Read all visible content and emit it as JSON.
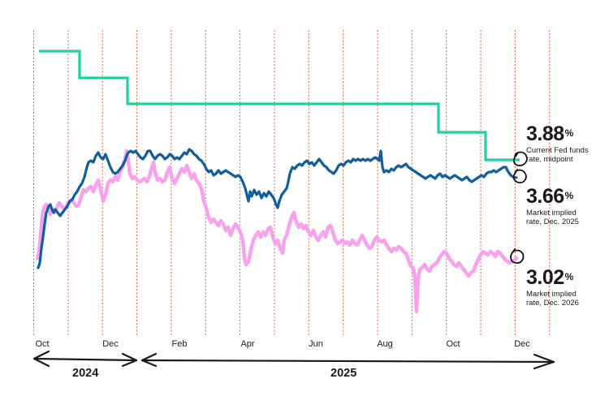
{
  "chart_data": {
    "type": "line",
    "title": "",
    "xlabel": "",
    "ylabel": "",
    "grid": "vertical dotted red lines, semi-monthly",
    "x_ticks": [
      "Oct",
      "Dec",
      "Feb",
      "Apr",
      "Jun",
      "Aug",
      "Oct",
      "Dec"
    ],
    "year_spans": [
      {
        "label": "2024",
        "from": "Oct",
        "to": "Dec"
      },
      {
        "label": "2025",
        "from": "Jan",
        "to": "Dec"
      }
    ],
    "x_range": [
      "2024-10",
      "2025-12"
    ],
    "series": [
      {
        "name": "Current Fed funds rate, midpoint",
        "color": "#1ed3a0",
        "kind": "step",
        "points": [
          {
            "x": "2024-10-01",
            "y": 4.83
          },
          {
            "x": "2024-11-07",
            "y": 4.58
          },
          {
            "x": "2024-12-18",
            "y": 4.33
          },
          {
            "x": "2025-09-17",
            "y": 4.08
          },
          {
            "x": "2025-10-29",
            "y": 3.88
          },
          {
            "x": "2025-11-30",
            "y": 3.88
          }
        ],
        "end_value": 3.88
      },
      {
        "name": "Market implied rate, Dec. 2025",
        "color": "#0f5f9c",
        "kind": "line",
        "monthly_approx": [
          3.0,
          3.45,
          3.75,
          3.9,
          3.88,
          3.72,
          3.55,
          3.85,
          3.88,
          3.78,
          3.72,
          3.72,
          3.66
        ],
        "end_value": 3.66
      },
      {
        "name": "Market implied rate, Dec. 2026",
        "color": "#f7a2ea",
        "kind": "line",
        "monthly_approx": [
          3.05,
          3.45,
          3.6,
          3.78,
          3.72,
          3.35,
          3.15,
          3.3,
          3.2,
          3.05,
          3.05,
          3.1,
          3.02
        ],
        "end_value": 3.02
      }
    ],
    "annotations": [
      {
        "value": "3.88",
        "unit": "%",
        "text": "Current Fed funds rate, midpoint"
      },
      {
        "value": "3.66",
        "unit": "%",
        "text": "Market implied rate, Dec. 2025"
      },
      {
        "value": "3.02",
        "unit": "%",
        "text": "Market implied rate, Dec. 2026"
      }
    ],
    "legend_position": "right (inline callouts)"
  },
  "colors": {
    "fed": "#1ed3a0",
    "dec2025": "#0f5f9c",
    "dec2026": "#f7a2ea",
    "grid": "#e0452f",
    "ink": "#1a1a1a"
  },
  "callouts": [
    {
      "value": "3.88",
      "unit": "%",
      "line1": "Current Fed funds",
      "line2": "rate, midpoint"
    },
    {
      "value": "3.66",
      "unit": "%",
      "line1": "Market implied",
      "line2": "rate, Dec. 2025"
    },
    {
      "value": "3.02",
      "unit": "%",
      "line1": "Market implied",
      "line2": "rate, Dec. 2026"
    }
  ],
  "months": [
    "Oct",
    "Dec",
    "Feb",
    "Apr",
    "Jun",
    "Aug",
    "Oct",
    "Dec"
  ],
  "years": [
    "2024",
    "2025"
  ]
}
